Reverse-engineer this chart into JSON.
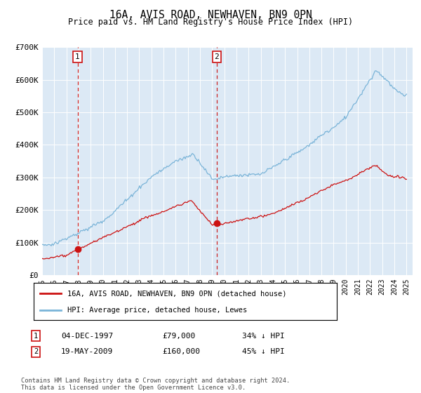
{
  "title": "16A, AVIS ROAD, NEWHAVEN, BN9 0PN",
  "subtitle": "Price paid vs. HM Land Registry's House Price Index (HPI)",
  "plot_bg_color": "#dce9f5",
  "ylim": [
    0,
    700000
  ],
  "yticks": [
    0,
    100000,
    200000,
    300000,
    400000,
    500000,
    600000,
    700000
  ],
  "ytick_labels": [
    "£0",
    "£100K",
    "£200K",
    "£300K",
    "£400K",
    "£500K",
    "£600K",
    "£700K"
  ],
  "hpi_color": "#7ab4d8",
  "price_color": "#cc1111",
  "vline_color": "#cc2222",
  "sale1": {
    "date_num": 1997.92,
    "price": 79000,
    "label": "1",
    "date_str": "04-DEC-1997",
    "pct": "34% ↓ HPI"
  },
  "sale2": {
    "date_num": 2009.38,
    "price": 160000,
    "label": "2",
    "date_str": "19-MAY-2009",
    "pct": "45% ↓ HPI"
  },
  "legend_entry1": "16A, AVIS ROAD, NEWHAVEN, BN9 0PN (detached house)",
  "legend_entry2": "HPI: Average price, detached house, Lewes",
  "footer": "Contains HM Land Registry data © Crown copyright and database right 2024.\nThis data is licensed under the Open Government Licence v3.0.",
  "xlim_start": 1995.0,
  "xlim_end": 2025.5
}
